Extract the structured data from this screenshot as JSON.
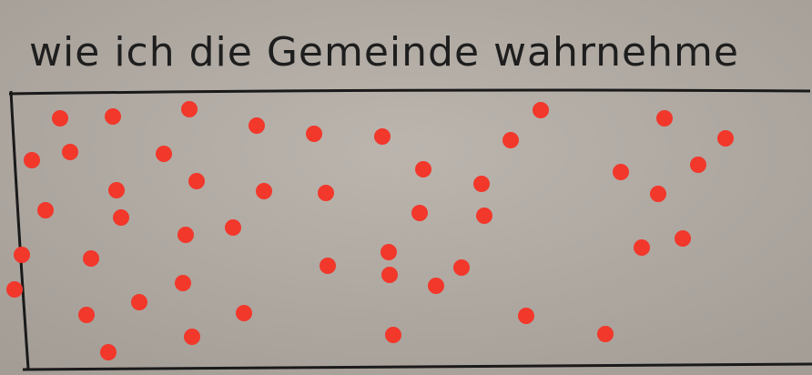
{
  "title": "wie ich die Gemeinde wahrnehme"
}
